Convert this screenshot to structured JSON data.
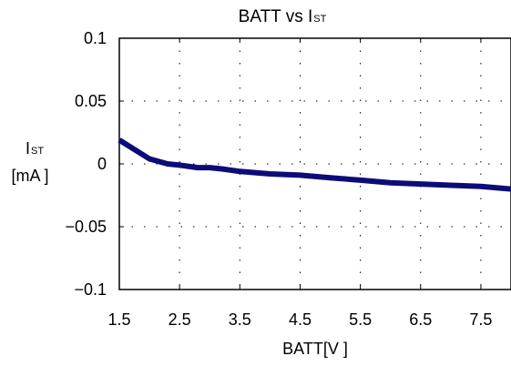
{
  "chart_data": {
    "type": "line",
    "title_main": "BATT vs I",
    "title_sub": "ST",
    "xlabel": "BATT[V ]",
    "ylabel_main": "I",
    "ylabel_sub": "ST",
    "ylabel_unit": "[mA ]",
    "xlim": [
      1.5,
      8.0
    ],
    "ylim": [
      -0.1,
      0.1
    ],
    "xticks": [
      1.5,
      2.5,
      3.5,
      4.5,
      5.5,
      6.5,
      7.5
    ],
    "xtick_labels": [
      "1.5",
      "2.5",
      "3.5",
      "4.5",
      "5.5",
      "6.5",
      "7.5"
    ],
    "yticks": [
      0.1,
      0.05,
      0,
      -0.05,
      -0.1
    ],
    "ytick_labels": [
      "0.1",
      "0.05",
      "0",
      "−0.05",
      "−0.1"
    ],
    "grid": true,
    "line_color": "#0c0c78",
    "series": [
      {
        "x": [
          1.5,
          1.7,
          2.0,
          2.3,
          2.5,
          2.8,
          3.0,
          3.2,
          3.5,
          4.0,
          4.5,
          5.0,
          5.5,
          6.0,
          6.5,
          7.0,
          7.5,
          8.0
        ],
        "y": [
          0.019,
          0.013,
          0.004,
          -0.0,
          -0.001,
          -0.003,
          -0.003,
          -0.004,
          -0.006,
          -0.008,
          -0.009,
          -0.011,
          -0.013,
          -0.015,
          -0.016,
          -0.017,
          -0.018,
          -0.02
        ]
      }
    ]
  }
}
